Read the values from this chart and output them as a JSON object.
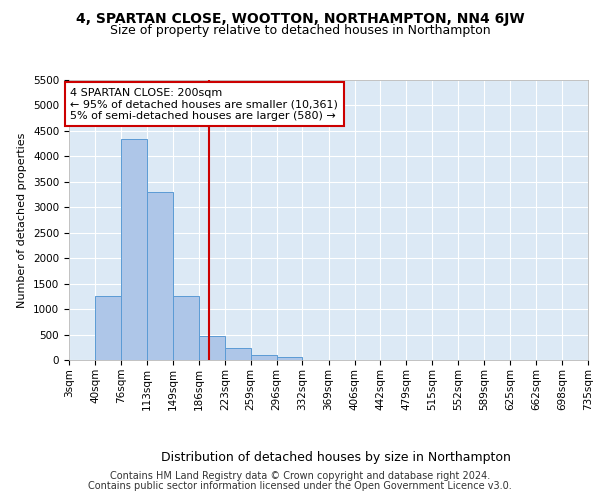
{
  "title": "4, SPARTAN CLOSE, WOOTTON, NORTHAMPTON, NN4 6JW",
  "subtitle": "Size of property relative to detached houses in Northampton",
  "xlabel": "Distribution of detached houses by size in Northampton",
  "ylabel": "Number of detached properties",
  "bin_edges": [
    3,
    40,
    76,
    113,
    149,
    186,
    223,
    259,
    296,
    332,
    369,
    406,
    442,
    479,
    515,
    552,
    589,
    625,
    662,
    698,
    735
  ],
  "bar_heights": [
    0,
    1250,
    4350,
    3300,
    1250,
    480,
    240,
    100,
    60,
    0,
    0,
    0,
    0,
    0,
    0,
    0,
    0,
    0,
    0,
    0
  ],
  "bar_color": "#aec6e8",
  "bar_edge_color": "#5b9bd5",
  "property_size": 200,
  "red_line_color": "#cc0000",
  "annotation_text": "4 SPARTAN CLOSE: 200sqm\n← 95% of detached houses are smaller (10,361)\n5% of semi-detached houses are larger (580) →",
  "annotation_box_color": "#ffffff",
  "annotation_box_edge": "#cc0000",
  "ylim": [
    0,
    5500
  ],
  "yticks": [
    0,
    500,
    1000,
    1500,
    2000,
    2500,
    3000,
    3500,
    4000,
    4500,
    5000,
    5500
  ],
  "background_color": "#dce9f5",
  "grid_color": "#ffffff",
  "footer_line1": "Contains HM Land Registry data © Crown copyright and database right 2024.",
  "footer_line2": "Contains public sector information licensed under the Open Government Licence v3.0.",
  "title_fontsize": 10,
  "subtitle_fontsize": 9,
  "xlabel_fontsize": 9,
  "ylabel_fontsize": 8,
  "tick_fontsize": 7.5,
  "annotation_fontsize": 8,
  "footer_fontsize": 7
}
